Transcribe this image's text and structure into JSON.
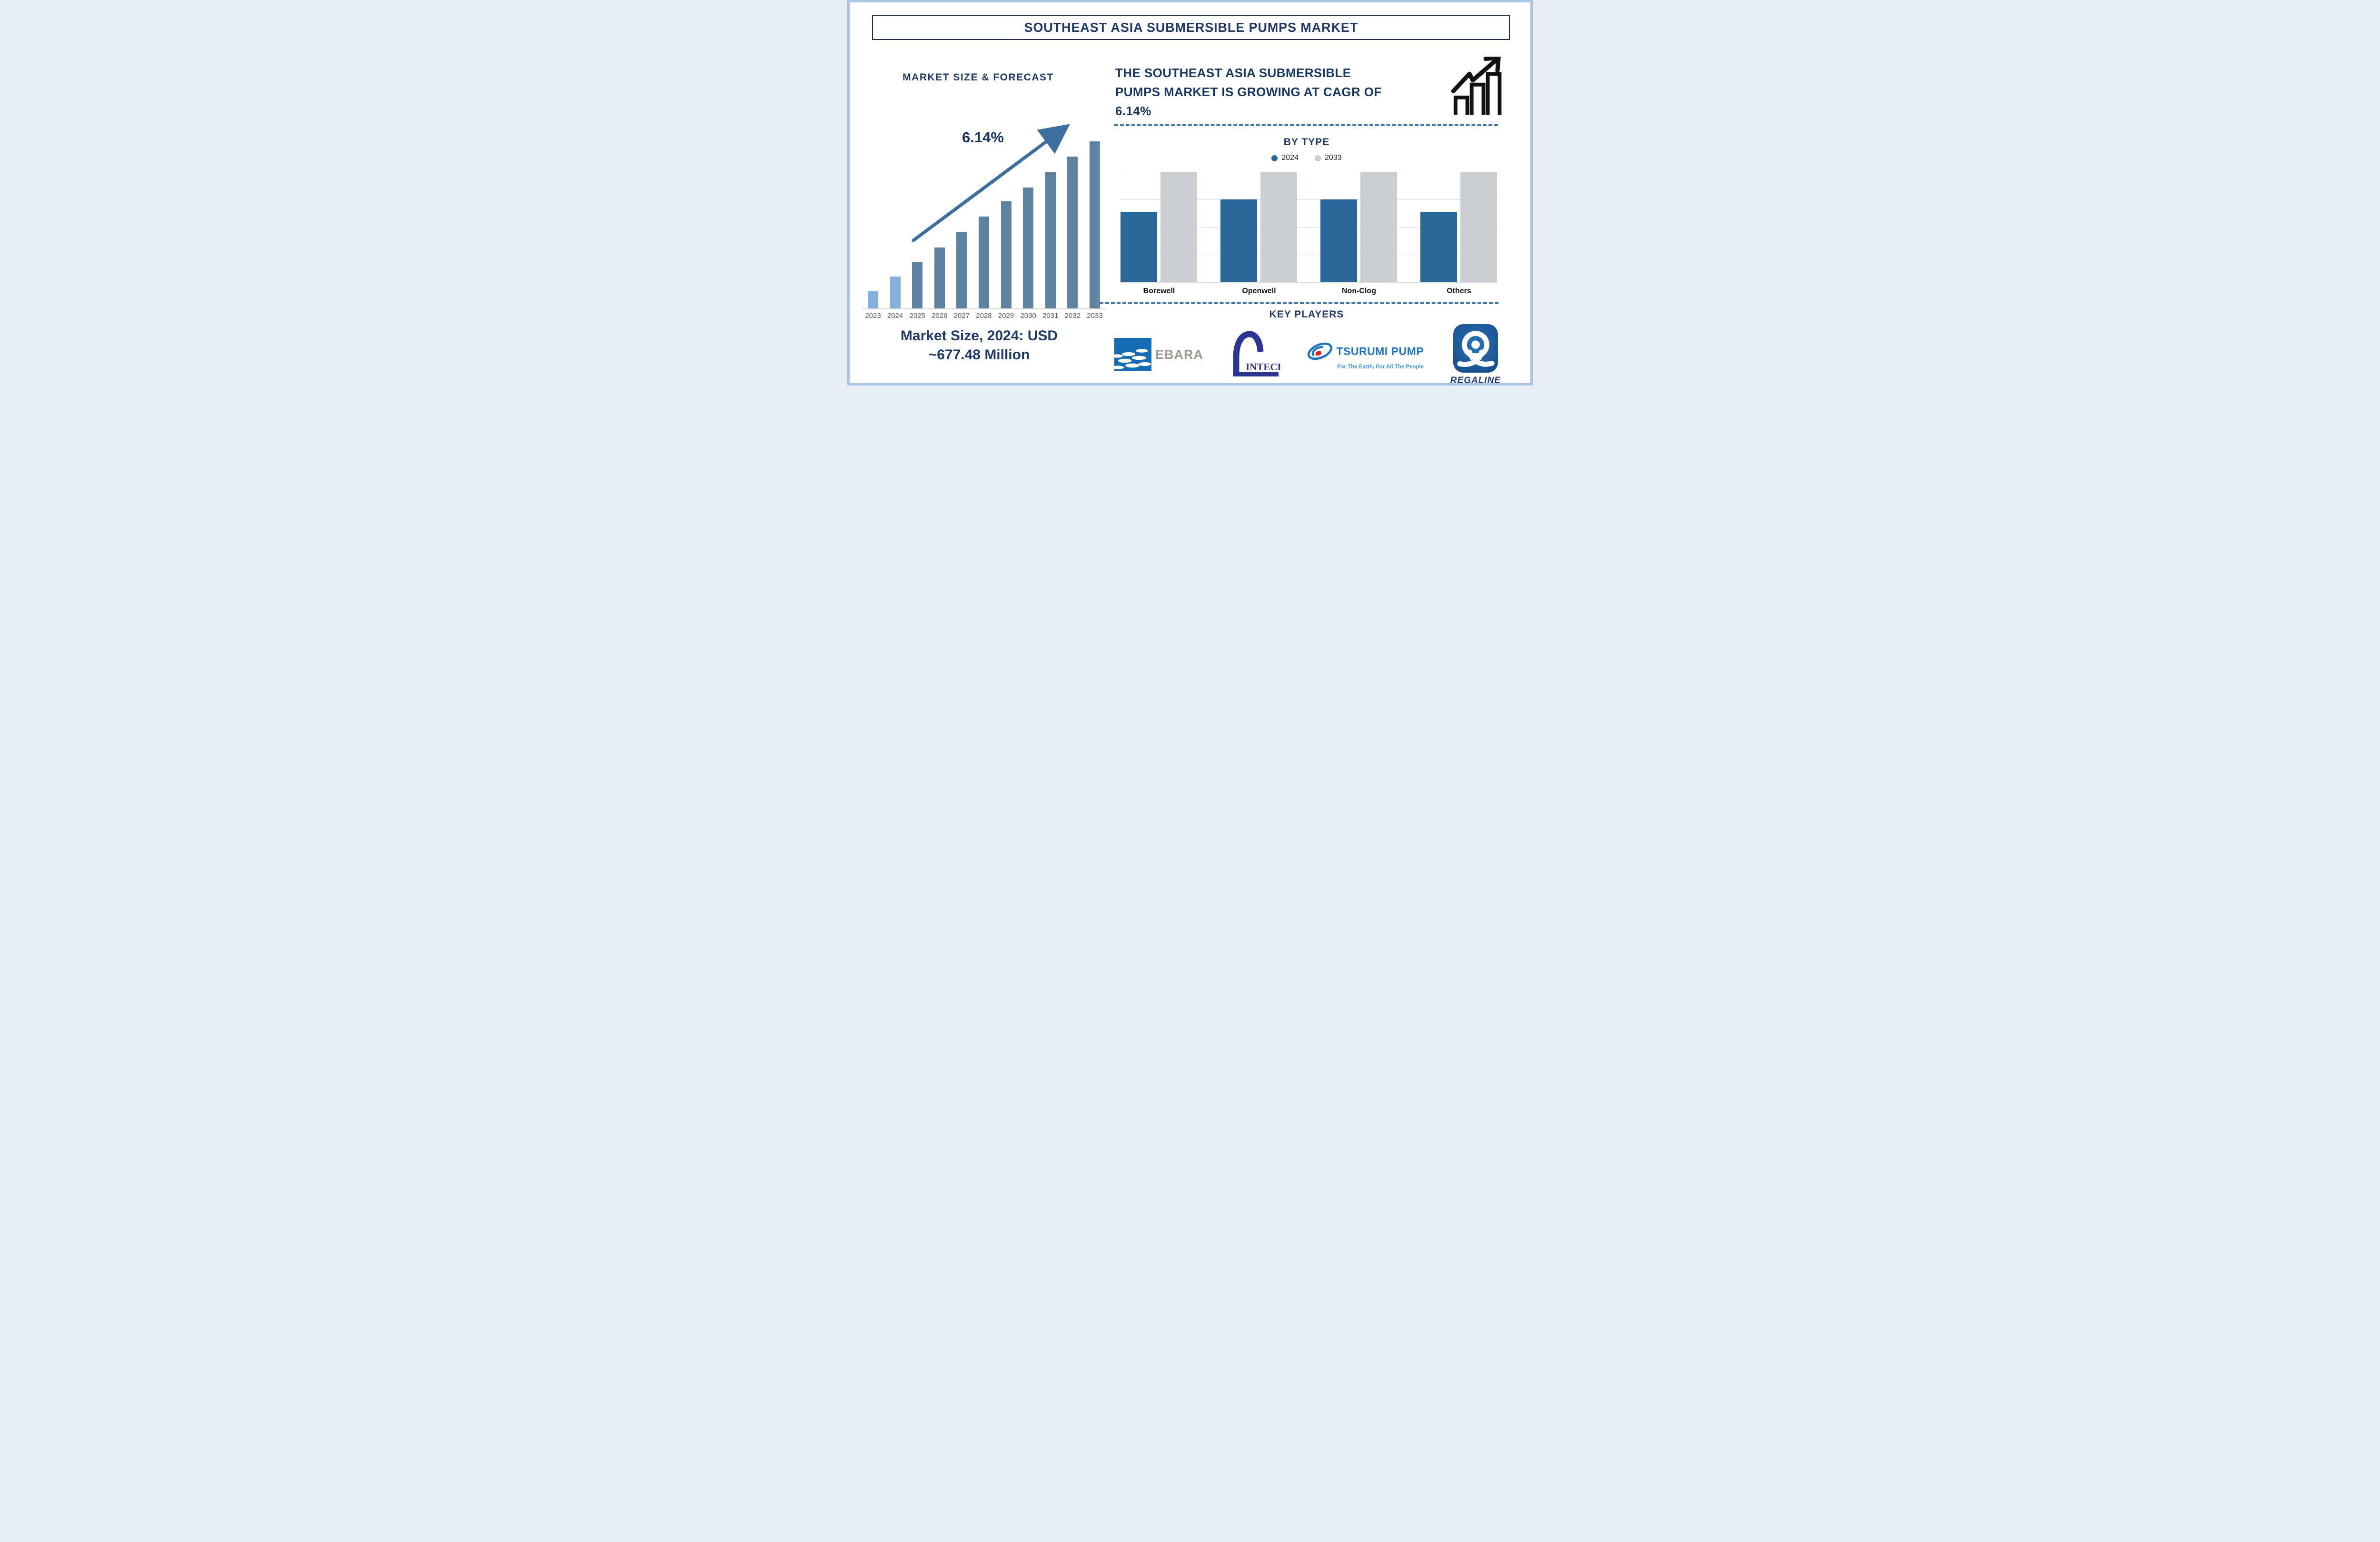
{
  "page": {
    "title": "SOUTHEAST ASIA SUBMERSIBLE PUMPS MARKET"
  },
  "colors": {
    "frame_border": "#a9c7e4",
    "navy_text": "#1f3864",
    "arrow_steel_blue": "#3c6e9f",
    "dashed_separator": "#4779a6",
    "gridline": "#dcdcdc",
    "year_label_gray": "#595959",
    "left_bar_light_blue": "#83b1dc",
    "left_bar_slate_blue": "#5e82a2",
    "right_bar_blue_2024": "#2b6699",
    "right_bar_gray_2033": "#cbcfd4",
    "ebara_blue": "#156cb5",
    "ebara_gray": "#9b9990",
    "intech_indigo": "#2d3491",
    "tsurumi_blue": "#1c75bc",
    "tsurumi_light_blue": "#3e9bd6",
    "tsurumi_red": "#e3242b",
    "regaline_blue": "#1d5fa5",
    "regaline_navy": "#1e3b76"
  },
  "left_section": {
    "heading": "MARKET SIZE & FORECAST",
    "cagr_annotation": "6.14%",
    "caption_line1": "Market Size, 2024: USD",
    "caption_line2": "~677.48 Million"
  },
  "right_section": {
    "headline_line1": "THE SOUTHEAST ASIA SUBMERSIBLE",
    "headline_line2": "PUMPS MARKET IS GROWING AT CAGR OF",
    "headline_line3": "6.14%",
    "by_type_title": "BY TYPE",
    "key_players_title": "KEY PLAYERS",
    "players": {
      "ebara_label": "EBARA",
      "intech_label": "INTECH",
      "tsurumi_label": "TSURUMI PUMP",
      "tsurumi_tagline": "For The Earth, For All The People",
      "regaline_label": "REGALINE"
    }
  },
  "chart_data": [
    {
      "id": "market_size_forecast",
      "type": "bar",
      "title": "MARKET SIZE & FORECAST",
      "categories": [
        "2023",
        "2024",
        "2025",
        "2026",
        "2027",
        "2028",
        "2029",
        "2030",
        "2031",
        "2032",
        "2033"
      ],
      "values_relative_height_pct": [
        10.5,
        19,
        27.5,
        36.5,
        46,
        55,
        64,
        72.5,
        81.5,
        91,
        100
      ],
      "highlight_years_light_blue": [
        "2023",
        "2024"
      ],
      "annotation": "6.14%",
      "market_size_2024_usd_million": 677.48,
      "cagr_pct": 6.14,
      "xlabel": "",
      "ylabel": "",
      "grid": false,
      "value_axis_visible": false
    },
    {
      "id": "by_type",
      "type": "bar",
      "title": "BY TYPE",
      "categories": [
        "Borewell",
        "Openwell",
        "Non-Clog",
        "Others"
      ],
      "series": [
        {
          "name": "2024",
          "color": "#2b6699",
          "values_relative_pct": [
            64,
            75,
            75,
            64
          ]
        },
        {
          "name": "2033",
          "color": "#cbcfd4",
          "values_relative_pct": [
            100,
            100,
            100,
            100
          ]
        }
      ],
      "legend_position": "top",
      "grid": "horizontal",
      "gridline_count": 5,
      "value_axis_visible": false
    }
  ]
}
